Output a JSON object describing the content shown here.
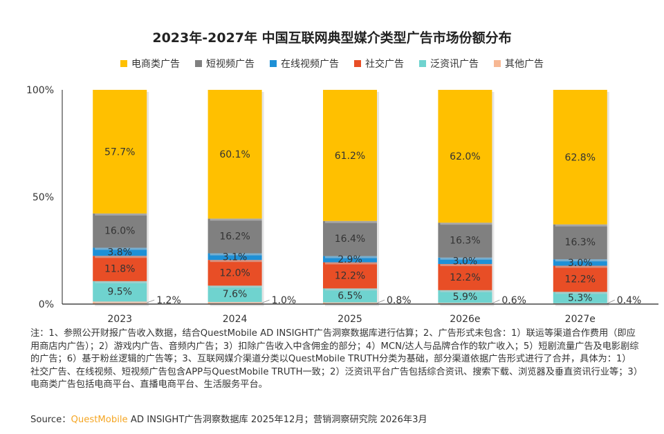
{
  "chart_data": {
    "type": "bar",
    "stacked": true,
    "title": "2023年-2027年 中国互联网典型媒介类型广告市场份额分布",
    "categories": [
      "2023",
      "2024",
      "2025",
      "2026e",
      "2027e"
    ],
    "y_ticks": [
      "0%",
      "50%",
      "100%"
    ],
    "ylim": [
      0,
      100
    ],
    "legend_position": "top",
    "grid": false,
    "series": [
      {
        "name": "电商类广告",
        "color": "#FFC000",
        "values": [
          57.7,
          60.1,
          61.2,
          62.0,
          62.8
        ],
        "labels": [
          "57.7%",
          "60.1%",
          "61.2%",
          "62.0%",
          "62.8%"
        ]
      },
      {
        "name": "短视频广告",
        "color": "#808080",
        "values": [
          16.0,
          16.2,
          16.4,
          16.3,
          16.3
        ],
        "labels": [
          "16.0%",
          "16.2%",
          "16.4%",
          "16.3%",
          "16.3%"
        ]
      },
      {
        "name": "在线视频广告",
        "color": "#1E90D6",
        "values": [
          3.8,
          3.1,
          2.9,
          3.0,
          3.0
        ],
        "labels": [
          "3.8%",
          "3.1%",
          "2.9%",
          "3.0%",
          "3.0%"
        ]
      },
      {
        "name": "社交广告",
        "color": "#E84E26",
        "values": [
          11.8,
          12.0,
          12.2,
          12.2,
          12.2
        ],
        "labels": [
          "11.8%",
          "12.0%",
          "12.2%",
          "12.2%",
          "12.2%"
        ]
      },
      {
        "name": "泛资讯广告",
        "color": "#6FD3CF",
        "values": [
          9.5,
          7.6,
          6.5,
          5.9,
          5.3
        ],
        "labels": [
          "9.5%",
          "7.6%",
          "6.5%",
          "5.9%",
          "5.3%"
        ]
      },
      {
        "name": "其他广告",
        "color": "#F7B894",
        "values": [
          1.2,
          1.0,
          0.8,
          0.6,
          0.4
        ],
        "labels": [
          "1.2%",
          "1.0%",
          "0.8%",
          "0.6%",
          "0.4%"
        ]
      }
    ]
  },
  "notes": "注：1、参照公开财报广告收入数据，结合QuestMobile AD INSIGHT广告洞察数据库进行估算；2、广告形式未包含：1）联运等渠道合作费用（即应用商店内广告）；2）游戏内广告、音频内广告；3）扣除广告收入中含佣金的部分；4）MCN/达人与品牌合作的软广收入；5）短剧流量广告及电影剧综的广告；6）基于粉丝逻辑的广告等；3、互联网媒介渠道分类以QuestMobile TRUTH分类为基础，部分渠道依据广告形式进行了合并，具体为：1）社交广告、在线视频、短视频广告包含APP与QuestMobile TRUTH一致；2）泛资讯平台广告包括综合资讯、搜索下载、浏览器及垂直资讯行业等；3）电商类广告包括电商平台、直播电商平台、生活服务平台。",
  "source": {
    "label": "Source：",
    "brand": "QuestMobile",
    "text": " AD INSIGHT广告洞察数据库 2025年12月；营销洞察研究院 2026年3月"
  }
}
